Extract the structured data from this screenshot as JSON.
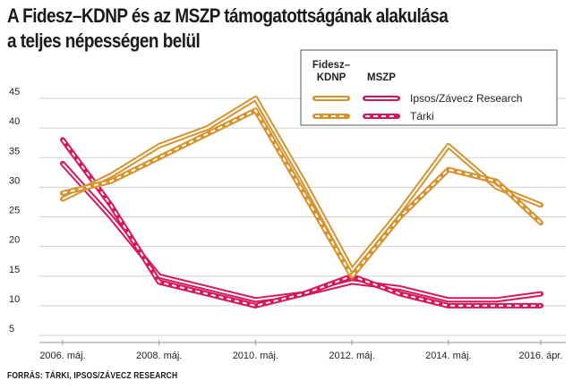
{
  "chart_data": {
    "type": "line",
    "title_line1": "A Fidesz–KDNP és az MSZP támogatottságának alakulása",
    "title_line2": "a teljes népességen belül",
    "source": "FORRÁS: TÁRKI, IPSOS/ZÁVECZ RESEARCH",
    "x": [
      2006.333,
      2007.333,
      2008.333,
      2009.333,
      2010.333,
      2011.333,
      2012.333,
      2013.333,
      2014.333,
      2015.333,
      2016.25
    ],
    "x_ticks": [
      {
        "value": 2006.333,
        "label": "2006. máj."
      },
      {
        "value": 2008.333,
        "label": "2008. máj."
      },
      {
        "value": 2010.333,
        "label": "2010. máj."
      },
      {
        "value": 2012.333,
        "label": "2012. máj."
      },
      {
        "value": 2014.333,
        "label": "2014. máj."
      },
      {
        "value": 2016.25,
        "label": "2016. ápr."
      }
    ],
    "ylim": [
      5,
      45
    ],
    "y_ticks": [
      5,
      10,
      15,
      20,
      25,
      30,
      35,
      40,
      45
    ],
    "grid": "horizontal",
    "legend_placement": "top-right",
    "legend": {
      "col_heads": [
        "Fidesz–\nKDNP",
        "MSZP"
      ],
      "pollsters": [
        "Ipsos/Závecz Research",
        "Tárki"
      ]
    },
    "colors": {
      "fidesz": "#D7922D",
      "mszp": "#D8175A",
      "grid": "#d0d0d0"
    },
    "series": [
      {
        "party": "fidesz",
        "pollster": "Ipsos/Závecz Research",
        "style": "solid",
        "values": [
          28,
          32,
          37,
          40,
          45,
          31,
          16,
          26,
          37,
          30,
          27
        ]
      },
      {
        "party": "fidesz",
        "pollster": "Tárki",
        "style": "dashed",
        "values": [
          29,
          31,
          35,
          39,
          43,
          29,
          15,
          25,
          33,
          31,
          24
        ]
      },
      {
        "party": "mszp",
        "pollster": "Ipsos/Závecz Research",
        "style": "solid",
        "values": [
          34,
          25,
          15,
          13,
          11,
          12,
          14,
          13,
          11,
          11,
          12
        ]
      },
      {
        "party": "mszp",
        "pollster": "Tárki",
        "style": "dashed",
        "values": [
          38,
          27,
          14,
          12,
          10,
          12,
          15,
          12,
          10,
          10,
          10
        ]
      }
    ]
  }
}
